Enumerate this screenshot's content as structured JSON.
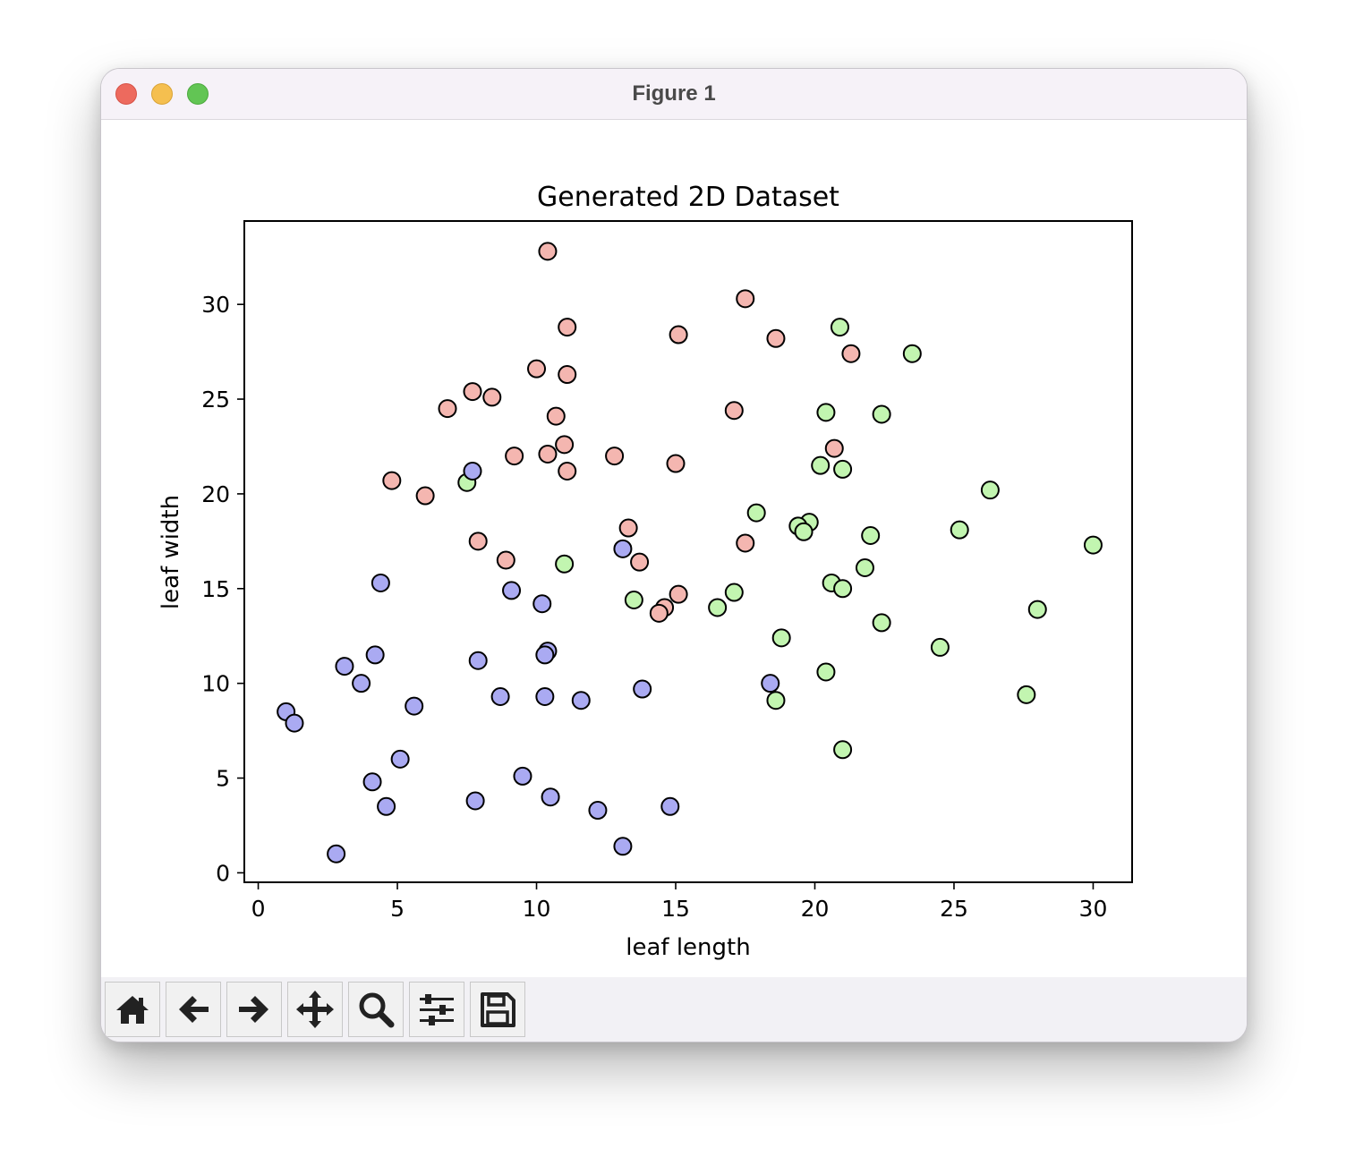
{
  "window": {
    "title": "Figure 1"
  },
  "toolbar": {
    "buttons": [
      {
        "name": "home-button",
        "icon": "home-icon"
      },
      {
        "name": "back-button",
        "icon": "arrow-left-icon"
      },
      {
        "name": "forward-button",
        "icon": "arrow-right-icon"
      },
      {
        "name": "pan-button",
        "icon": "move-icon"
      },
      {
        "name": "zoom-button",
        "icon": "magnifier-icon"
      },
      {
        "name": "configure-subplots-button",
        "icon": "sliders-icon"
      },
      {
        "name": "save-button",
        "icon": "floppy-disk-icon"
      }
    ]
  },
  "colors": {
    "red": "#f4b6b0",
    "green": "#c2f5b0",
    "blue": "#aaaaf2",
    "edge": "#000000"
  },
  "chart_data": {
    "type": "scatter",
    "title": "Generated 2D Dataset",
    "xlabel": "leaf length",
    "ylabel": "leaf width",
    "xlim": [
      -0.5,
      31.4
    ],
    "ylim": [
      -0.5,
      34.4
    ],
    "xticks": [
      0,
      5,
      10,
      15,
      20,
      25,
      30
    ],
    "yticks": [
      0,
      5,
      10,
      15,
      20,
      25,
      30
    ],
    "grid": false,
    "series": [
      {
        "color": "red",
        "points": [
          [
            10.4,
            32.8
          ],
          [
            17.5,
            30.3
          ],
          [
            11.1,
            28.8
          ],
          [
            15.1,
            28.4
          ],
          [
            18.6,
            28.2
          ],
          [
            21.3,
            27.4
          ],
          [
            10.0,
            26.6
          ],
          [
            11.1,
            26.3
          ],
          [
            7.7,
            25.4
          ],
          [
            8.4,
            25.1
          ],
          [
            6.8,
            24.5
          ],
          [
            17.1,
            24.4
          ],
          [
            10.7,
            24.1
          ],
          [
            11.0,
            22.6
          ],
          [
            20.7,
            22.4
          ],
          [
            10.4,
            22.1
          ],
          [
            9.2,
            22.0
          ],
          [
            12.8,
            22.0
          ],
          [
            15.0,
            21.6
          ],
          [
            11.1,
            21.2
          ],
          [
            4.8,
            20.7
          ],
          [
            6.0,
            19.9
          ],
          [
            13.3,
            18.2
          ],
          [
            7.9,
            17.5
          ],
          [
            17.5,
            17.4
          ],
          [
            8.9,
            16.5
          ],
          [
            13.7,
            16.4
          ],
          [
            15.1,
            14.7
          ],
          [
            14.6,
            14.0
          ],
          [
            14.4,
            13.7
          ]
        ]
      },
      {
        "color": "green",
        "points": [
          [
            20.9,
            28.8
          ],
          [
            23.5,
            27.4
          ],
          [
            20.4,
            24.3
          ],
          [
            22.4,
            24.2
          ],
          [
            20.2,
            21.5
          ],
          [
            21.0,
            21.3
          ],
          [
            7.5,
            20.6
          ],
          [
            26.3,
            20.2
          ],
          [
            17.9,
            19.0
          ],
          [
            19.8,
            18.5
          ],
          [
            19.4,
            18.3
          ],
          [
            19.6,
            18.0
          ],
          [
            25.2,
            18.1
          ],
          [
            22.0,
            17.8
          ],
          [
            30.0,
            17.3
          ],
          [
            11.0,
            16.3
          ],
          [
            21.8,
            16.1
          ],
          [
            20.6,
            15.3
          ],
          [
            21.0,
            15.0
          ],
          [
            17.1,
            14.8
          ],
          [
            13.5,
            14.4
          ],
          [
            16.5,
            14.0
          ],
          [
            28.0,
            13.9
          ],
          [
            22.4,
            13.2
          ],
          [
            18.8,
            12.4
          ],
          [
            24.5,
            11.9
          ],
          [
            20.4,
            10.6
          ],
          [
            27.6,
            9.4
          ],
          [
            18.6,
            9.1
          ],
          [
            21.0,
            6.5
          ]
        ]
      },
      {
        "color": "blue",
        "points": [
          [
            7.7,
            21.2
          ],
          [
            13.1,
            17.1
          ],
          [
            4.4,
            15.3
          ],
          [
            9.1,
            14.9
          ],
          [
            10.2,
            14.2
          ],
          [
            10.4,
            11.7
          ],
          [
            10.3,
            11.5
          ],
          [
            4.2,
            11.5
          ],
          [
            7.9,
            11.2
          ],
          [
            3.1,
            10.9
          ],
          [
            3.7,
            10.0
          ],
          [
            18.4,
            10.0
          ],
          [
            13.8,
            9.7
          ],
          [
            8.7,
            9.3
          ],
          [
            10.3,
            9.3
          ],
          [
            11.6,
            9.1
          ],
          [
            5.6,
            8.8
          ],
          [
            1.0,
            8.5
          ],
          [
            1.3,
            7.9
          ],
          [
            5.1,
            6.0
          ],
          [
            9.5,
            5.1
          ],
          [
            4.1,
            4.8
          ],
          [
            10.5,
            4.0
          ],
          [
            7.8,
            3.8
          ],
          [
            4.6,
            3.5
          ],
          [
            14.8,
            3.5
          ],
          [
            12.2,
            3.3
          ],
          [
            13.1,
            1.4
          ],
          [
            2.8,
            1.0
          ]
        ]
      }
    ]
  }
}
